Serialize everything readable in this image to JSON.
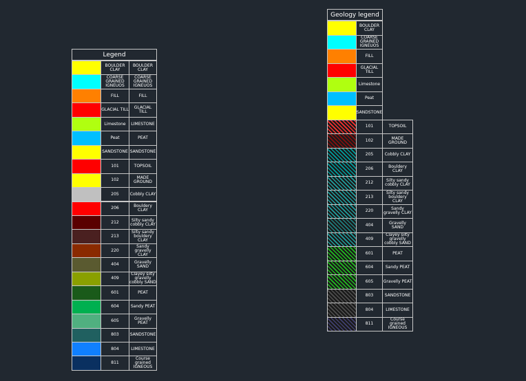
{
  "left_legend": {
    "title": "Legend",
    "rows": [
      {
        "color": "#ffff00",
        "label": "BOULDER CLAY",
        "description": "BOULDER CLAY"
      },
      {
        "color": "#00ffff",
        "label": "COARSE GRAINED IGNEUOS",
        "description": "COARSE GRAINED IGNEUOS"
      },
      {
        "color": "#ff8000",
        "label": "FILL",
        "description": "FILL"
      },
      {
        "color": "#ff0000",
        "label": "GLACIAL TILL",
        "description": "GLACIAL TILL"
      },
      {
        "color": "#b0ff10",
        "label": "Limestone",
        "description": "LIMESTONE"
      },
      {
        "color": "#00bfff",
        "label": "Peat",
        "description": "PEAT"
      },
      {
        "color": "#ffff00",
        "label": "SANDSTONE",
        "description": "SANDSTONE"
      },
      {
        "color": "#ff0000",
        "label": "101",
        "description": "TOPSOIL"
      },
      {
        "color": "#ffff00",
        "label": "102",
        "description": "MADE GROUND"
      },
      {
        "color": "#c0c0c0",
        "label": "205",
        "description": "Cobbly CLAY"
      },
      {
        "color": "#ff0000",
        "label": "206",
        "description": "Bouldery CLAY"
      },
      {
        "color": "#5a0000",
        "label": "212",
        "description": "Silty sandy cobbly CLAY"
      },
      {
        "color": "#4a2020",
        "label": "213",
        "description": "Silty sandy bouldery CLAY"
      },
      {
        "color": "#8a2a00",
        "label": "220",
        "description": "Sandy gravelly CLAY"
      },
      {
        "color": "#5a5a30",
        "label": "404",
        "description": "Gravelly SAND"
      },
      {
        "color": "#8aa000",
        "label": "409",
        "description": "Clayey silty gravelly cobbly SAND"
      },
      {
        "color": "#1a5a1a",
        "label": "601",
        "description": "PEAT"
      },
      {
        "color": "#00b050",
        "label": "604",
        "description": "Sandy PEAT"
      },
      {
        "color": "#50b080",
        "label": "605",
        "description": "Gravelly PEAT"
      },
      {
        "color": "#206060",
        "label": "803",
        "description": "SANDSTONE"
      },
      {
        "color": "#1080ff",
        "label": "804",
        "description": "LIMESTONE"
      },
      {
        "color": "#0a3060",
        "label": "811",
        "description": "Course grained IGNEOUS"
      }
    ]
  },
  "right_legend": {
    "title": "Geology legend",
    "rows": [
      {
        "color": "#ffff00",
        "label": "BOULDER CLAY"
      },
      {
        "color": "#00ffff",
        "label": "COARSE GRAINED IGNEUOS"
      },
      {
        "color": "#ff8000",
        "label": "FILL"
      },
      {
        "color": "#ff0000",
        "label": "GLACIAL TILL"
      },
      {
        "color": "#b0ff10",
        "label": "Limestone"
      },
      {
        "color": "#00bfff",
        "label": "Peat"
      },
      {
        "color": "#ffff00",
        "label": "SANDSTONE"
      },
      {
        "color": "#ff3030",
        "label": "101",
        "description": "TOPSOIL"
      },
      {
        "color": "#8a1010",
        "label": "102",
        "description": "MADE GROUND"
      },
      {
        "color": "#00a0a0",
        "label": "205",
        "description": "Cobbly CLAY"
      },
      {
        "color": "#00a0a0",
        "label": "206",
        "description": "Bouldery CLAY"
      },
      {
        "color": "#20a0a0",
        "label": "212",
        "description": "Silty sandy cobbly CLAY"
      },
      {
        "color": "#20a0a0",
        "label": "213",
        "description": "Silty sandy bouldery CLAY"
      },
      {
        "color": "#20a0a0",
        "label": "220",
        "description": "Sandy gravelly CLAY"
      },
      {
        "color": "#208080",
        "label": "404",
        "description": "Gravelly SAND"
      },
      {
        "color": "#20a0a0",
        "label": "409",
        "description": "Clayey silty gravelly cobbly SAND"
      },
      {
        "color": "#20c020",
        "label": "601",
        "description": "PEAT"
      },
      {
        "color": "#20c020",
        "label": "604",
        "description": "Sandy PEAT"
      },
      {
        "color": "#20c020",
        "label": "605",
        "description": "Gravelly PEAT"
      },
      {
        "color": "#505050",
        "label": "803",
        "description": "SANDSTONE"
      },
      {
        "color": "#505050",
        "label": "804",
        "description": "LIMESTONE"
      },
      {
        "color": "#404070",
        "label": "811",
        "description": "Course grained IGNEOUS"
      }
    ]
  }
}
